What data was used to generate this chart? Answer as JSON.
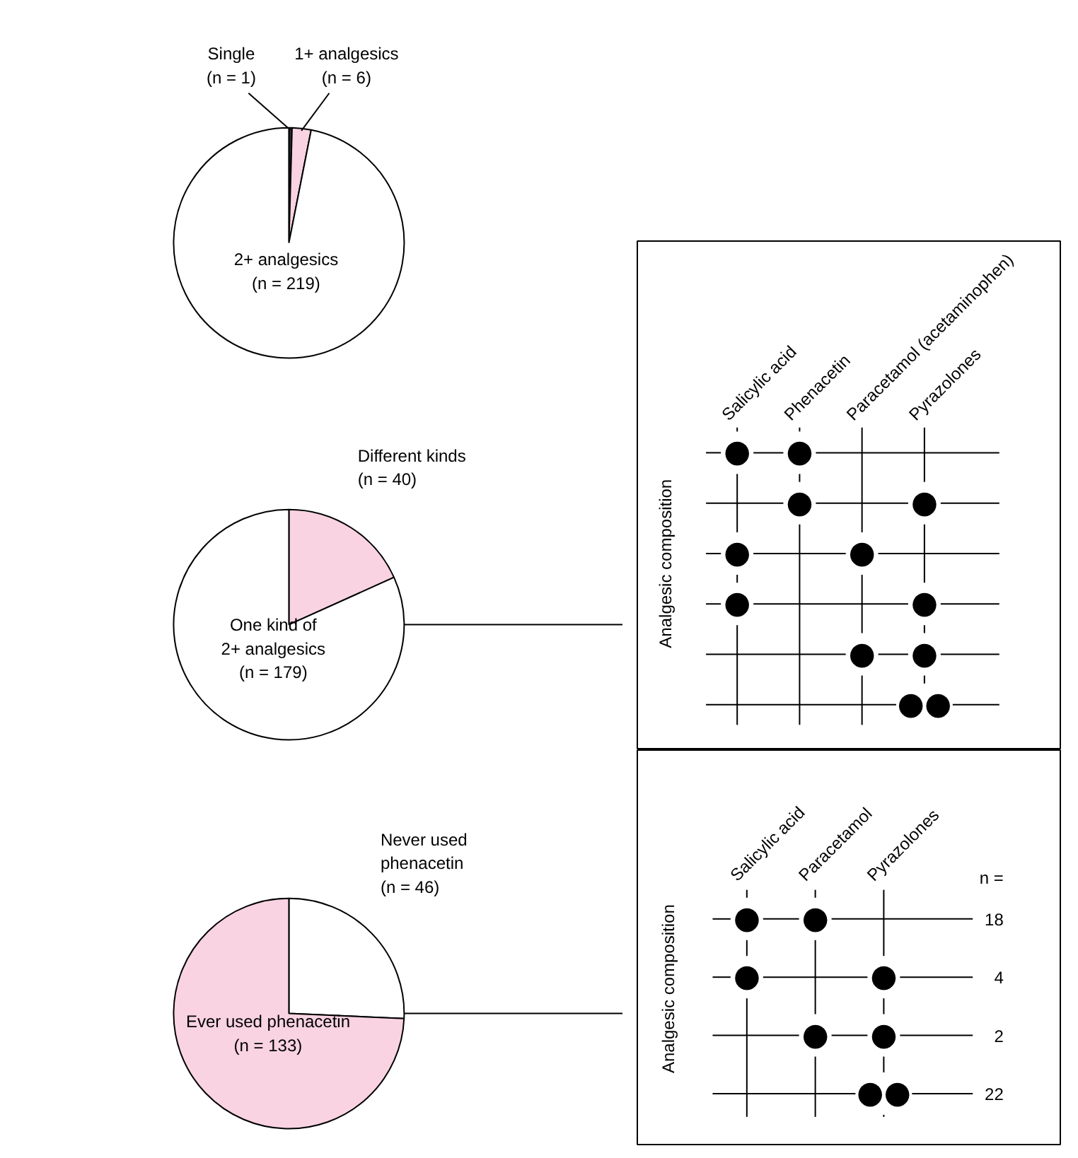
{
  "chart_data": [
    {
      "type": "pie",
      "categories": [
        "Single",
        "1+ analgesics",
        "2+ analgesics"
      ],
      "values": [
        1,
        6,
        219
      ],
      "value_labels": [
        "(n = 1)",
        "(n = 6)",
        "(n = 219)"
      ],
      "colors": [
        "#333333",
        "#f9d3e2",
        "#ffffff"
      ]
    },
    {
      "type": "pie",
      "categories": [
        "Different kinds",
        "One kind of\n2+ analgesics"
      ],
      "values": [
        40,
        179
      ],
      "value_labels": [
        "(n = 40)",
        "(n = 179)"
      ],
      "colors": [
        "#f9d3e2",
        "#ffffff"
      ]
    },
    {
      "type": "other",
      "ylabel": "Analgesic composition",
      "categories": [
        "Salicylic acid",
        "Phenacetin",
        "Paracetamol (acetaminophen)",
        "Pyrazolones"
      ],
      "cell_labels": [
        [
          "●",
          "●",
          null,
          null
        ],
        [
          null,
          "●",
          null,
          "●"
        ],
        [
          "●",
          null,
          "●",
          null
        ],
        [
          "●",
          null,
          null,
          "●"
        ],
        [
          null,
          null,
          "●",
          "●"
        ],
        [
          null,
          null,
          null,
          "●●"
        ]
      ]
    },
    {
      "type": "pie",
      "categories": [
        "Never used\nphenacetin",
        "Ever used phenacetin"
      ],
      "values": [
        46,
        133
      ],
      "value_labels": [
        "(n = 46)",
        "(n = 133)"
      ],
      "colors": [
        "#ffffff",
        "#f9d3e2"
      ]
    },
    {
      "type": "other",
      "ylabel": "Analgesic composition",
      "categories": [
        "Salicylic acid",
        "Paracetamol",
        "Pyrazolones"
      ],
      "y2_categories": [
        "18",
        "4",
        "2",
        "22"
      ],
      "annotations": [
        "n ="
      ],
      "cell_labels": [
        [
          "●",
          "●",
          null
        ],
        [
          "●",
          null,
          "●"
        ],
        [
          null,
          "●",
          "●"
        ],
        [
          null,
          null,
          "●●"
        ]
      ]
    }
  ]
}
